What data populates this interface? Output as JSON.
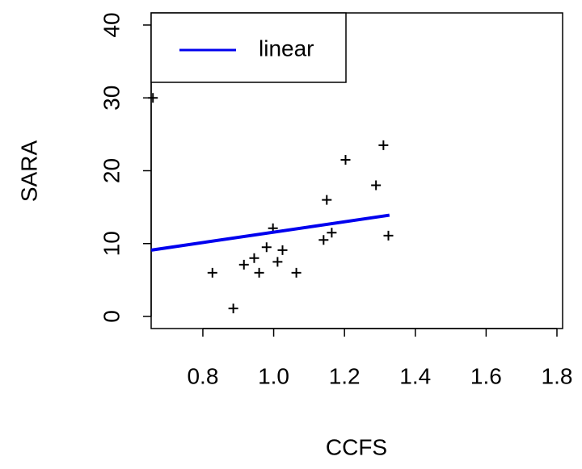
{
  "chart_data": {
    "type": "scatter",
    "xlabel": "CCFS",
    "ylabel": "SARA",
    "xlim": [
      0.654,
      1.816
    ],
    "ylim": [
      -1.66,
      41.66
    ],
    "xticks": [
      0.8,
      {
        "value": 1,
        "label": "1.0"
      },
      1.2,
      1.4,
      1.6,
      1.8
    ],
    "yticks": [
      0,
      10,
      20,
      30,
      40
    ],
    "points": {
      "marker": "+",
      "color": "#000000",
      "x": [
        0.659,
        0.827,
        0.886,
        0.916,
        0.945,
        0.959,
        0.98,
        0.998,
        1.011,
        1.025,
        1.064,
        1.141,
        1.15,
        1.164,
        1.203,
        1.289,
        1.31,
        1.324
      ],
      "y": [
        30.0,
        6.0,
        1.1,
        7.1,
        8.0,
        6.0,
        9.5,
        12.1,
        7.5,
        9.1,
        6.0,
        10.5,
        16.0,
        11.5,
        21.5,
        18.0,
        23.5,
        11.1
      ]
    },
    "lines": [
      {
        "name": "linear",
        "color": "#0000ee",
        "x": [
          0.654,
          1.327
        ],
        "y": [
          9.1,
          13.9
        ]
      }
    ],
    "legend": "top-left"
  }
}
